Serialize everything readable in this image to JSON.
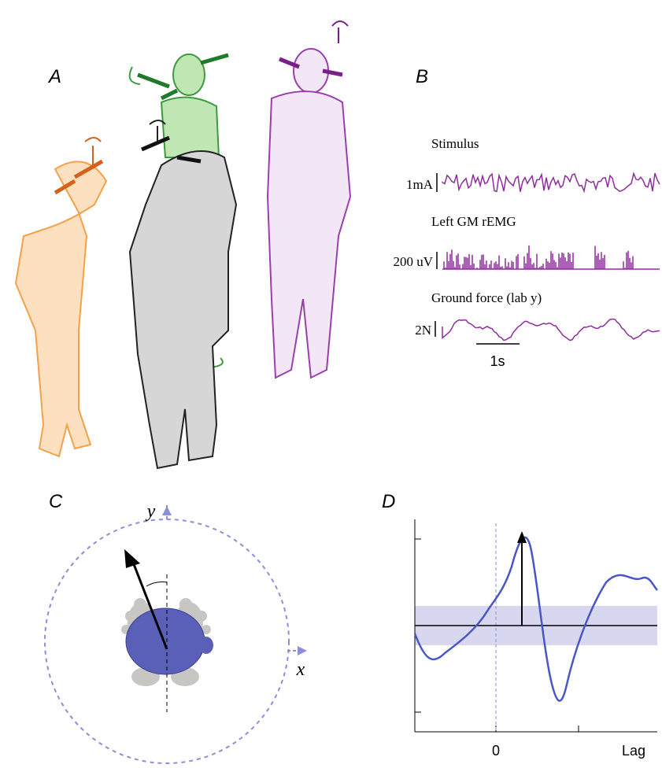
{
  "panels": {
    "A": {
      "label": "A"
    },
    "B": {
      "label": "B",
      "traces": [
        {
          "name": "Stimulus",
          "scale": "1mA"
        },
        {
          "name": "Left GM rEMG",
          "scale": "200 uV"
        },
        {
          "name": "Ground force (lab y)",
          "scale": "2N"
        }
      ],
      "time_scale": "1s"
    },
    "C": {
      "label": "C",
      "y_axis": "y",
      "x_axis": "x"
    },
    "D": {
      "label": "D",
      "x_labels": [
        "0",
        "Lag"
      ]
    }
  }
}
